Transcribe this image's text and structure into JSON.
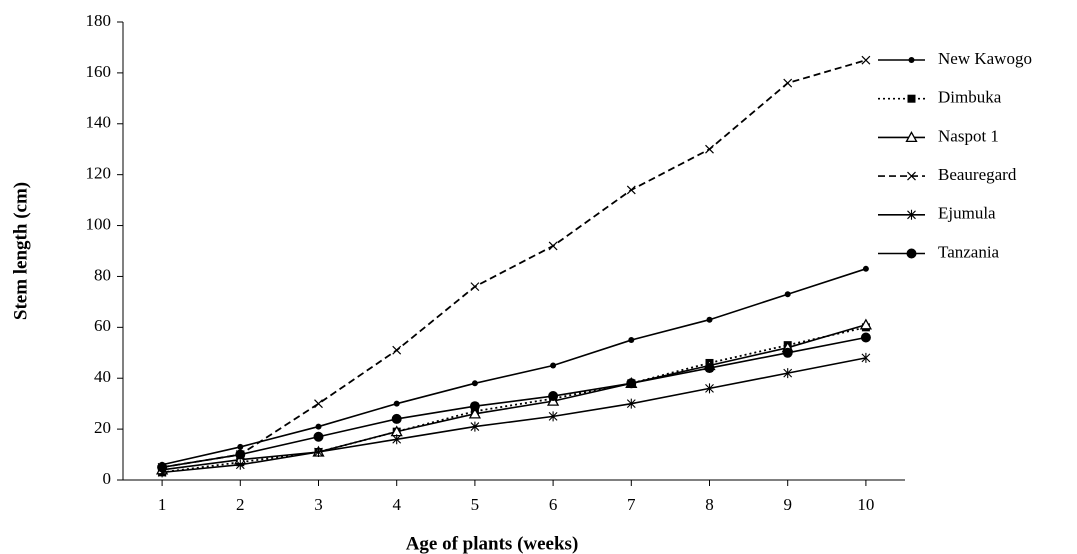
{
  "chart_data": {
    "type": "line",
    "xlabel": "Age of plants (weeks)",
    "ylabel": "Stem length (cm)",
    "x": [
      1,
      2,
      3,
      4,
      5,
      6,
      7,
      8,
      9,
      10
    ],
    "xlim": [
      0.5,
      10.5
    ],
    "xticks": [
      1,
      2,
      3,
      4,
      5,
      6,
      7,
      8,
      9,
      10
    ],
    "ylim": [
      0,
      180
    ],
    "yticks": [
      0,
      20,
      40,
      60,
      80,
      100,
      120,
      140,
      160,
      180
    ],
    "grid": false,
    "legend": "right",
    "series": [
      {
        "name": "New Kawogo",
        "color": "#000000",
        "dash": "solid",
        "marker": "dot",
        "values": [
          6,
          13,
          21,
          30,
          38,
          45,
          55,
          63,
          73,
          83
        ]
      },
      {
        "name": "Dimbuka",
        "color": "#000000",
        "dash": "dotted",
        "marker": "square",
        "values": [
          3,
          7,
          11,
          19,
          27,
          32,
          38,
          46,
          53,
          60
        ]
      },
      {
        "name": "Naspot 1",
        "color": "#000000",
        "dash": "solid",
        "marker": "triangle",
        "values": [
          4,
          8,
          11,
          19,
          26,
          31,
          38,
          45,
          52,
          61
        ]
      },
      {
        "name": "Beauregard",
        "color": "#000000",
        "dash": "dashed",
        "marker": "cross",
        "values": [
          5,
          10,
          30,
          51,
          76,
          92,
          114,
          130,
          156,
          165
        ]
      },
      {
        "name": "Ejumula",
        "color": "#000000",
        "dash": "solid",
        "marker": "star",
        "values": [
          3,
          6,
          11,
          16,
          21,
          25,
          30,
          36,
          42,
          48
        ]
      },
      {
        "name": "Tanzania",
        "color": "#000000",
        "dash": "solid",
        "marker": "circle",
        "values": [
          5,
          10,
          17,
          24,
          29,
          33,
          38,
          44,
          50,
          56
        ]
      }
    ]
  }
}
